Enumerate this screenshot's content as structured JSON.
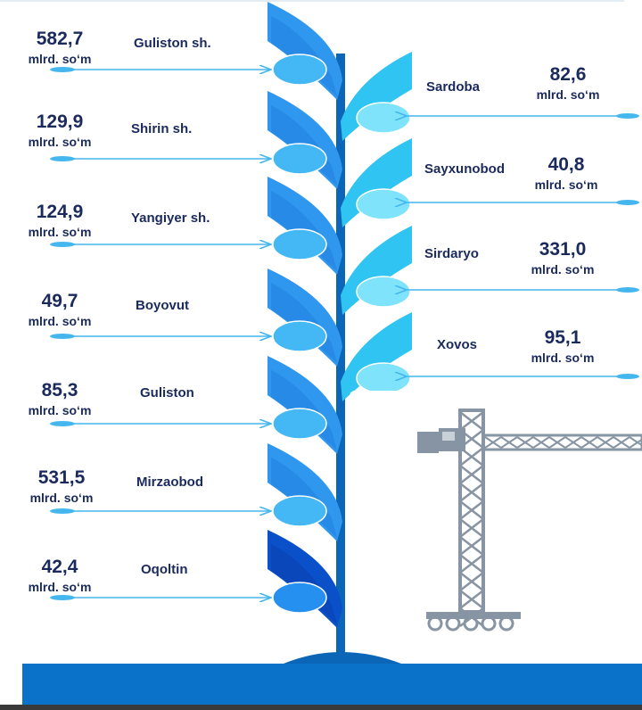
{
  "colors": {
    "stem": "#0b66b8",
    "leaf_left": "#2f97ee",
    "leaf_left_dark": "#0a50c8",
    "leaf_right": "#2fc4f2",
    "bulb_left": "#43b8f4",
    "bulb_right": "#7fe3fb",
    "arrow": "#45b6ee",
    "text": "#1b2a5c",
    "footer": "#0a72c8",
    "crane": "#8794a3"
  },
  "left_items": [
    {
      "value": "582,7",
      "unit": "mlrd. so‘m",
      "name": "Guliston sh."
    },
    {
      "value": "129,9",
      "unit": "mlrd. so‘m",
      "name": "Shirin sh."
    },
    {
      "value": "124,9",
      "unit": "mlrd. so‘m",
      "name": "Yangiyer sh."
    },
    {
      "value": "49,7",
      "unit": "mlrd. so‘m",
      "name": "Boyovut"
    },
    {
      "value": "85,3",
      "unit": "mlrd. so‘m",
      "name": "Guliston"
    },
    {
      "value": "531,5",
      "unit": "mlrd. so‘m",
      "name": "Mirzaobod"
    },
    {
      "value": "42,4",
      "unit": "mlrd. so‘m",
      "name": "Oqoltin"
    }
  ],
  "right_items": [
    {
      "value": "82,6",
      "unit": "mlrd. so‘m",
      "name": "Sardoba"
    },
    {
      "value": "40,8",
      "unit": "mlrd. so‘m",
      "name": "Sayxunobod"
    },
    {
      "value": "331,0",
      "unit": "mlrd. so‘m",
      "name": "Sirdaryo"
    },
    {
      "value": "95,1",
      "unit": "mlrd. so‘m",
      "name": "Xovos"
    }
  ],
  "crane_icon": "tower-crane-icon"
}
